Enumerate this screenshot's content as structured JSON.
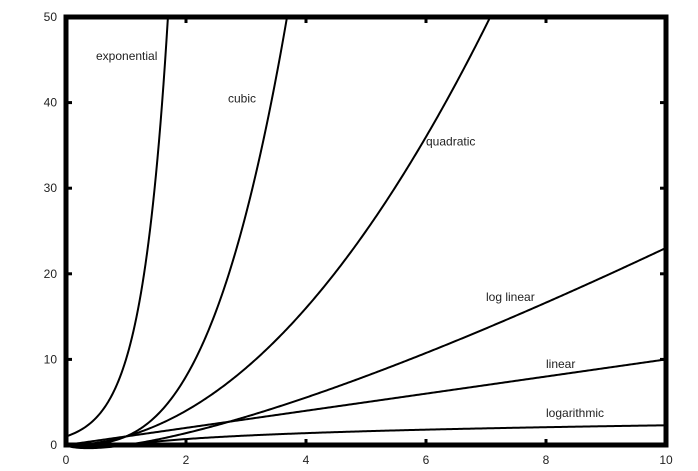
{
  "chart_data": {
    "type": "line",
    "title": "",
    "xlabel": "",
    "ylabel": "",
    "xlim": [
      0,
      10
    ],
    "ylim": [
      0,
      50
    ],
    "grid": false,
    "legend": "inline labels",
    "x_ticks": [
      0,
      2,
      4,
      6,
      8,
      10
    ],
    "y_ticks": [
      0,
      10,
      20,
      30,
      40,
      50
    ],
    "series": [
      {
        "name": "exponential",
        "function": "10^x",
        "x": [
          0,
          0.5,
          1,
          1.5,
          1.7
        ],
        "values": [
          1,
          3.16,
          10,
          31.6,
          50
        ],
        "label_pos": [
          0.5,
          45
        ]
      },
      {
        "name": "cubic",
        "function": "x^3",
        "x": [
          0,
          1,
          2,
          3,
          3.68
        ],
        "values": [
          0,
          1,
          8,
          27,
          50
        ],
        "label_pos": [
          2.7,
          40
        ]
      },
      {
        "name": "quadratic",
        "function": "x^2",
        "x": [
          0,
          1,
          2,
          3,
          4,
          5,
          6,
          7,
          7.07
        ],
        "values": [
          0,
          1,
          4,
          9,
          16,
          25,
          36,
          49,
          50
        ],
        "label_pos": [
          6.0,
          35
        ]
      },
      {
        "name": "log linear",
        "function": "x*ln(x)",
        "x": [
          0,
          1,
          2,
          4,
          6,
          8,
          10
        ],
        "values": [
          0,
          0,
          1.39,
          5.55,
          10.75,
          16.64,
          23.03
        ],
        "label_pos": [
          7.0,
          16.8
        ]
      },
      {
        "name": "linear",
        "function": "x",
        "x": [
          0,
          2,
          4,
          6,
          8,
          10
        ],
        "values": [
          0,
          2,
          4,
          6,
          8,
          10
        ],
        "label_pos": [
          8.0,
          9
        ]
      },
      {
        "name": "logarithmic",
        "function": "ln(x)",
        "x": [
          1,
          2,
          4,
          6,
          8,
          10
        ],
        "values": [
          0,
          0.69,
          1.39,
          1.79,
          2.08,
          2.3
        ],
        "label_pos": [
          8.0,
          3.3
        ]
      }
    ]
  }
}
